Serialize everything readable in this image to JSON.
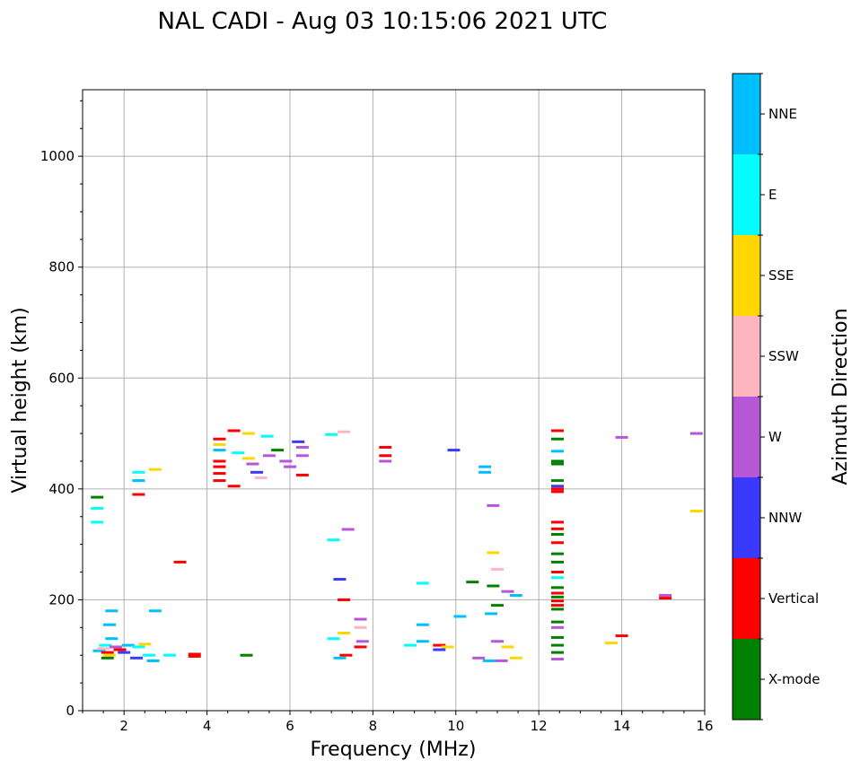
{
  "chart_data": {
    "type": "scatter",
    "title": "NAL CADI - Aug 03 10:15:06 2021 UTC",
    "xlabel": "Frequency (MHz)",
    "ylabel": "Virtual height (km)",
    "xlim": [
      1,
      16
    ],
    "ylim": [
      0,
      1120
    ],
    "xticks": [
      2,
      4,
      6,
      8,
      10,
      12,
      14,
      16
    ],
    "yticks": [
      0,
      200,
      400,
      600,
      800,
      1000
    ],
    "grid": true,
    "colorbar": {
      "label": "Azimuth Direction",
      "categories": [
        {
          "name": "X-mode",
          "color": "#008000"
        },
        {
          "name": "Vertical",
          "color": "#ff0000"
        },
        {
          "name": "NNW",
          "color": "#3a3aff"
        },
        {
          "name": "W",
          "color": "#b657d6"
        },
        {
          "name": "SSW",
          "color": "#ffb6c1"
        },
        {
          "name": "SSE",
          "color": "#ffd700"
        },
        {
          "name": "E",
          "color": "#00ffff"
        },
        {
          "name": "NNE",
          "color": "#00bfff"
        }
      ]
    },
    "points": [
      {
        "f": 1.35,
        "h": 385,
        "c": "X-mode"
      },
      {
        "f": 1.35,
        "h": 365,
        "c": "E"
      },
      {
        "f": 1.35,
        "h": 340,
        "c": "E"
      },
      {
        "f": 1.4,
        "h": 108,
        "c": "NNE"
      },
      {
        "f": 1.5,
        "h": 112,
        "c": "SSW"
      },
      {
        "f": 1.55,
        "h": 118,
        "c": "E"
      },
      {
        "f": 1.6,
        "h": 105,
        "c": "Vertical"
      },
      {
        "f": 1.65,
        "h": 100,
        "c": "SSE"
      },
      {
        "f": 1.6,
        "h": 95,
        "c": "X-mode"
      },
      {
        "f": 1.7,
        "h": 180,
        "c": "NNE"
      },
      {
        "f": 1.65,
        "h": 155,
        "c": "NNE"
      },
      {
        "f": 1.7,
        "h": 130,
        "c": "NNE"
      },
      {
        "f": 1.8,
        "h": 115,
        "c": "W"
      },
      {
        "f": 1.9,
        "h": 110,
        "c": "Vertical"
      },
      {
        "f": 2.0,
        "h": 105,
        "c": "NNW"
      },
      {
        "f": 2.1,
        "h": 118,
        "c": "NNE"
      },
      {
        "f": 2.3,
        "h": 95,
        "c": "NNW"
      },
      {
        "f": 2.35,
        "h": 115,
        "c": "E"
      },
      {
        "f": 2.5,
        "h": 120,
        "c": "SSE"
      },
      {
        "f": 2.6,
        "h": 100,
        "c": "E"
      },
      {
        "f": 2.7,
        "h": 90,
        "c": "NNE"
      },
      {
        "f": 2.75,
        "h": 180,
        "c": "NNE"
      },
      {
        "f": 2.35,
        "h": 430,
        "c": "E"
      },
      {
        "f": 2.35,
        "h": 390,
        "c": "Vertical"
      },
      {
        "f": 2.35,
        "h": 415,
        "c": "NNE"
      },
      {
        "f": 2.75,
        "h": 435,
        "c": "SSE"
      },
      {
        "f": 3.1,
        "h": 100,
        "c": "E"
      },
      {
        "f": 3.35,
        "h": 268,
        "c": "Vertical"
      },
      {
        "f": 3.7,
        "h": 102,
        "c": "Vertical"
      },
      {
        "f": 3.7,
        "h": 98,
        "c": "Vertical"
      },
      {
        "f": 4.3,
        "h": 490,
        "c": "Vertical"
      },
      {
        "f": 4.3,
        "h": 480,
        "c": "SSE"
      },
      {
        "f": 4.3,
        "h": 470,
        "c": "NNE"
      },
      {
        "f": 4.3,
        "h": 450,
        "c": "Vertical"
      },
      {
        "f": 4.3,
        "h": 440,
        "c": "Vertical"
      },
      {
        "f": 4.3,
        "h": 428,
        "c": "Vertical"
      },
      {
        "f": 4.3,
        "h": 415,
        "c": "Vertical"
      },
      {
        "f": 4.65,
        "h": 505,
        "c": "Vertical"
      },
      {
        "f": 4.65,
        "h": 405,
        "c": "Vertical"
      },
      {
        "f": 4.75,
        "h": 465,
        "c": "E"
      },
      {
        "f": 5.0,
        "h": 455,
        "c": "SSE"
      },
      {
        "f": 5.1,
        "h": 445,
        "c": "W"
      },
      {
        "f": 5.2,
        "h": 430,
        "c": "NNW"
      },
      {
        "f": 5.3,
        "h": 420,
        "c": "SSW"
      },
      {
        "f": 5.5,
        "h": 460,
        "c": "W"
      },
      {
        "f": 5.7,
        "h": 470,
        "c": "X-mode"
      },
      {
        "f": 5.9,
        "h": 450,
        "c": "W"
      },
      {
        "f": 6.0,
        "h": 440,
        "c": "W"
      },
      {
        "f": 6.2,
        "h": 485,
        "c": "NNW"
      },
      {
        "f": 6.3,
        "h": 475,
        "c": "W"
      },
      {
        "f": 6.3,
        "h": 460,
        "c": "W"
      },
      {
        "f": 6.3,
        "h": 425,
        "c": "Vertical"
      },
      {
        "f": 4.95,
        "h": 100,
        "c": "X-mode"
      },
      {
        "f": 5.0,
        "h": 500,
        "c": "SSE"
      },
      {
        "f": 5.45,
        "h": 495,
        "c": "E"
      },
      {
        "f": 7.0,
        "h": 498,
        "c": "E"
      },
      {
        "f": 7.3,
        "h": 503,
        "c": "SSW"
      },
      {
        "f": 7.05,
        "h": 308,
        "c": "E"
      },
      {
        "f": 7.4,
        "h": 327,
        "c": "W"
      },
      {
        "f": 7.2,
        "h": 237,
        "c": "NNW"
      },
      {
        "f": 7.3,
        "h": 200,
        "c": "Vertical"
      },
      {
        "f": 7.05,
        "h": 130,
        "c": "E"
      },
      {
        "f": 7.3,
        "h": 140,
        "c": "SSE"
      },
      {
        "f": 7.35,
        "h": 100,
        "c": "Vertical"
      },
      {
        "f": 7.2,
        "h": 95,
        "c": "NNE"
      },
      {
        "f": 7.7,
        "h": 165,
        "c": "W"
      },
      {
        "f": 7.7,
        "h": 150,
        "c": "SSW"
      },
      {
        "f": 7.75,
        "h": 125,
        "c": "W"
      },
      {
        "f": 7.7,
        "h": 115,
        "c": "Vertical"
      },
      {
        "f": 8.3,
        "h": 475,
        "c": "Vertical"
      },
      {
        "f": 8.3,
        "h": 460,
        "c": "Vertical"
      },
      {
        "f": 8.3,
        "h": 450,
        "c": "W"
      },
      {
        "f": 8.9,
        "h": 118,
        "c": "E"
      },
      {
        "f": 9.2,
        "h": 230,
        "c": "E"
      },
      {
        "f": 9.2,
        "h": 155,
        "c": "NNE"
      },
      {
        "f": 9.2,
        "h": 125,
        "c": "NNE"
      },
      {
        "f": 9.6,
        "h": 118,
        "c": "Vertical"
      },
      {
        "f": 9.6,
        "h": 110,
        "c": "NNW"
      },
      {
        "f": 9.8,
        "h": 115,
        "c": "SSE"
      },
      {
        "f": 9.95,
        "h": 470,
        "c": "NNW"
      },
      {
        "f": 10.1,
        "h": 170,
        "c": "NNE"
      },
      {
        "f": 10.4,
        "h": 232,
        "c": "X-mode"
      },
      {
        "f": 10.7,
        "h": 440,
        "c": "NNE"
      },
      {
        "f": 10.7,
        "h": 430,
        "c": "NNE"
      },
      {
        "f": 10.8,
        "h": 90,
        "c": "NNE"
      },
      {
        "f": 10.55,
        "h": 95,
        "c": "W"
      },
      {
        "f": 10.9,
        "h": 370,
        "c": "W"
      },
      {
        "f": 10.9,
        "h": 285,
        "c": "SSE"
      },
      {
        "f": 11.0,
        "h": 255,
        "c": "SSW"
      },
      {
        "f": 10.9,
        "h": 225,
        "c": "X-mode"
      },
      {
        "f": 10.85,
        "h": 175,
        "c": "NNE"
      },
      {
        "f": 11.0,
        "h": 190,
        "c": "X-mode"
      },
      {
        "f": 11.0,
        "h": 125,
        "c": "W"
      },
      {
        "f": 11.25,
        "h": 215,
        "c": "W"
      },
      {
        "f": 11.45,
        "h": 208,
        "c": "NNE"
      },
      {
        "f": 11.25,
        "h": 115,
        "c": "SSE"
      },
      {
        "f": 11.45,
        "h": 95,
        "c": "SSE"
      },
      {
        "f": 11.1,
        "h": 90,
        "c": "W"
      },
      {
        "f": 12.45,
        "h": 505,
        "c": "Vertical"
      },
      {
        "f": 12.45,
        "h": 490,
        "c": "X-mode"
      },
      {
        "f": 12.45,
        "h": 468,
        "c": "NNE"
      },
      {
        "f": 12.45,
        "h": 450,
        "c": "X-mode"
      },
      {
        "f": 12.45,
        "h": 445,
        "c": "X-mode"
      },
      {
        "f": 12.45,
        "h": 415,
        "c": "X-mode"
      },
      {
        "f": 12.45,
        "h": 405,
        "c": "NNW"
      },
      {
        "f": 12.45,
        "h": 400,
        "c": "Vertical"
      },
      {
        "f": 12.45,
        "h": 395,
        "c": "Vertical"
      },
      {
        "f": 12.45,
        "h": 340,
        "c": "Vertical"
      },
      {
        "f": 12.45,
        "h": 328,
        "c": "Vertical"
      },
      {
        "f": 12.45,
        "h": 318,
        "c": "X-mode"
      },
      {
        "f": 12.45,
        "h": 303,
        "c": "Vertical"
      },
      {
        "f": 12.45,
        "h": 283,
        "c": "X-mode"
      },
      {
        "f": 12.45,
        "h": 268,
        "c": "X-mode"
      },
      {
        "f": 12.45,
        "h": 250,
        "c": "Vertical"
      },
      {
        "f": 12.45,
        "h": 240,
        "c": "E"
      },
      {
        "f": 12.45,
        "h": 222,
        "c": "X-mode"
      },
      {
        "f": 12.45,
        "h": 212,
        "c": "Vertical"
      },
      {
        "f": 12.45,
        "h": 205,
        "c": "X-mode"
      },
      {
        "f": 12.45,
        "h": 198,
        "c": "Vertical"
      },
      {
        "f": 12.45,
        "h": 190,
        "c": "Vertical"
      },
      {
        "f": 12.45,
        "h": 183,
        "c": "X-mode"
      },
      {
        "f": 12.45,
        "h": 160,
        "c": "X-mode"
      },
      {
        "f": 12.45,
        "h": 150,
        "c": "W"
      },
      {
        "f": 12.45,
        "h": 132,
        "c": "X-mode"
      },
      {
        "f": 12.45,
        "h": 118,
        "c": "X-mode"
      },
      {
        "f": 12.45,
        "h": 105,
        "c": "X-mode"
      },
      {
        "f": 12.45,
        "h": 93,
        "c": "W"
      },
      {
        "f": 13.75,
        "h": 122,
        "c": "SSE"
      },
      {
        "f": 14.0,
        "h": 135,
        "c": "Vertical"
      },
      {
        "f": 14.0,
        "h": 493,
        "c": "W"
      },
      {
        "f": 15.05,
        "h": 208,
        "c": "W"
      },
      {
        "f": 15.05,
        "h": 203,
        "c": "Vertical"
      },
      {
        "f": 15.8,
        "h": 500,
        "c": "W"
      },
      {
        "f": 15.8,
        "h": 360,
        "c": "SSE"
      }
    ]
  }
}
